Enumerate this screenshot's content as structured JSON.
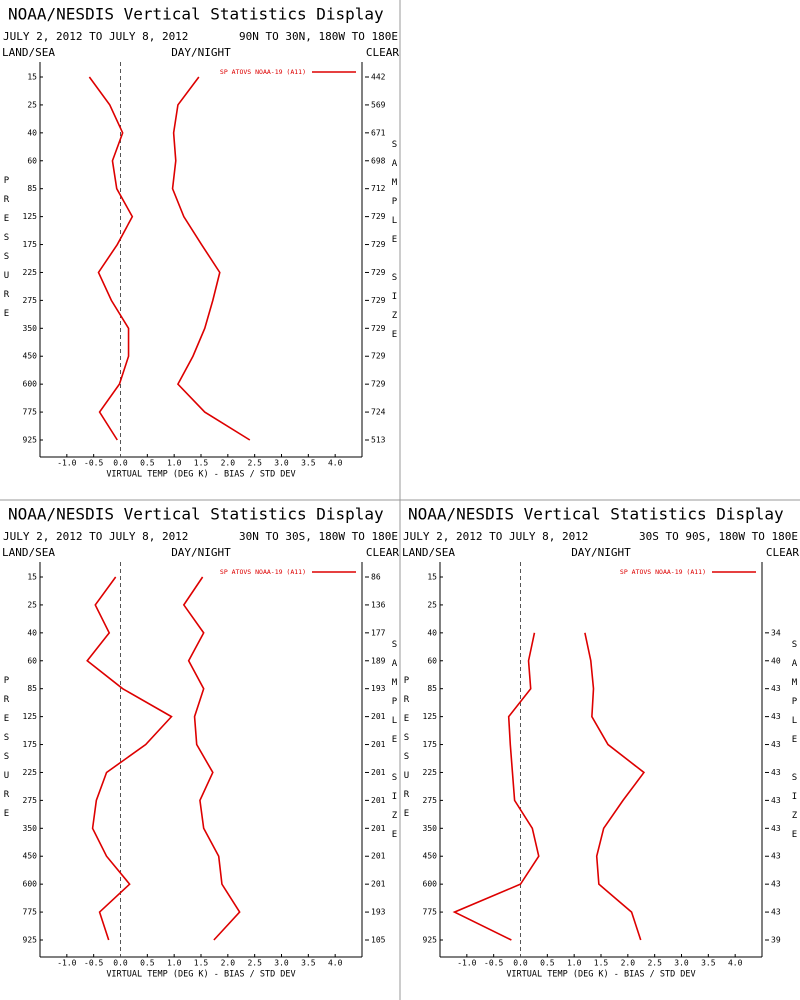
{
  "chart_data": [
    {
      "type": "line",
      "orientation": "horizontal",
      "title": "NOAA/NESDIS Vertical Statistics Display",
      "subtitle": "JULY 2, 2012 TO JULY 8, 2012",
      "region": "90N TO 30N, 180W TO 180E",
      "land_sea": "LAND/SEA",
      "day_night": "DAY/NIGHT",
      "clear": "CLEAR",
      "ylabel": "PRESSURE",
      "y2label": "SAMPLE SIZE",
      "xlabel": "VIRTUAL TEMP (DEG K) - BIAS / STD DEV",
      "categories": [
        15,
        25,
        40,
        60,
        85,
        125,
        175,
        225,
        275,
        350,
        450,
        600,
        775,
        925
      ],
      "sample_sizes": [
        442,
        569,
        671,
        698,
        712,
        729,
        729,
        729,
        729,
        729,
        729,
        729,
        724,
        513
      ],
      "series": [
        {
          "name": "SP ATOVS NOAA-19 (A11)",
          "color": "#dd0000",
          "values": [
            -0.58,
            -0.2,
            0.04,
            -0.15,
            -0.07,
            0.22,
            -0.06,
            -0.41,
            -0.17,
            0.15,
            0.15,
            -0.02,
            -0.39,
            -0.06
          ]
        },
        {
          "color": "#dd0000",
          "values": [
            1.46,
            1.07,
            0.99,
            1.03,
            0.97,
            1.18,
            1.51,
            1.85,
            1.72,
            1.57,
            1.35,
            1.07,
            1.57,
            2.41
          ]
        }
      ],
      "xlim": [
        -1.5,
        4.5
      ],
      "xticks": [
        {
          "value": -1,
          "label": "-1.0"
        },
        -0.5,
        {
          "value": 0,
          "label": "0.0"
        },
        0.5,
        {
          "value": 1,
          "label": "1.0"
        },
        1.5,
        {
          "value": 2,
          "label": "2.0"
        },
        2.5,
        {
          "value": 3,
          "label": "3.0"
        },
        3.5,
        {
          "value": 4,
          "label": "4.0"
        }
      ],
      "zero_line": true,
      "legend": "upper right"
    },
    {
      "type": "line",
      "orientation": "horizontal",
      "title": "NOAA/NESDIS Vertical Statistics Display",
      "subtitle": "JULY 2, 2012 TO JULY 8, 2012",
      "region": "30N TO 30S, 180W TO 180E",
      "land_sea": "LAND/SEA",
      "day_night": "DAY/NIGHT",
      "clear": "CLEAR",
      "ylabel": "PRESSURE",
      "y2label": "SAMPLE SIZE",
      "xlabel": "VIRTUAL TEMP (DEG K) - BIAS / STD DEV",
      "categories": [
        15,
        25,
        40,
        60,
        85,
        125,
        175,
        225,
        275,
        350,
        450,
        600,
        775,
        925
      ],
      "sample_sizes": [
        86,
        136,
        177,
        189,
        193,
        201,
        201,
        201,
        201,
        201,
        201,
        201,
        193,
        105
      ],
      "series": [
        {
          "name": "SP ATOVS NOAA-19 (A11)",
          "color": "#dd0000",
          "values": [
            -0.09,
            -0.47,
            -0.21,
            -0.62,
            0.04,
            0.95,
            0.47,
            -0.26,
            -0.45,
            -0.52,
            -0.26,
            0.17,
            -0.39,
            -0.22
          ]
        },
        {
          "color": "#dd0000",
          "values": [
            1.53,
            1.18,
            1.55,
            1.27,
            1.55,
            1.38,
            1.42,
            1.72,
            1.48,
            1.55,
            1.83,
            1.89,
            2.22,
            1.74
          ]
        }
      ],
      "xlim": [
        -1.5,
        4.5
      ],
      "xticks": [
        {
          "value": -1,
          "label": "-1.0"
        },
        -0.5,
        {
          "value": 0,
          "label": "0.0"
        },
        0.5,
        {
          "value": 1,
          "label": "1.0"
        },
        1.5,
        {
          "value": 2,
          "label": "2.0"
        },
        2.5,
        {
          "value": 3,
          "label": "3.0"
        },
        3.5,
        {
          "value": 4,
          "label": "4.0"
        }
      ],
      "zero_line": true,
      "legend": "upper right"
    },
    {
      "type": "line",
      "orientation": "horizontal",
      "title": "NOAA/NESDIS Vertical Statistics Display",
      "subtitle": "JULY 2, 2012 TO JULY 8, 2012",
      "region": "30S TO 90S, 180W TO 180E",
      "land_sea": "LAND/SEA",
      "day_night": "DAY/NIGHT",
      "clear": "CLEAR",
      "ylabel": "PRESSURE",
      "y2label": "SAMPLE SIZE",
      "xlabel": "VIRTUAL TEMP (DEG K) - BIAS / STD DEV",
      "categories": [
        15,
        25,
        40,
        60,
        85,
        125,
        175,
        225,
        275,
        350,
        450,
        600,
        775,
        925
      ],
      "sample_sizes": [
        null,
        null,
        34,
        40,
        43,
        43,
        43,
        43,
        43,
        43,
        43,
        43,
        43,
        39
      ],
      "series": [
        {
          "name": "SP ATOVS NOAA-19 (A11)",
          "color": "#dd0000",
          "values": [
            null,
            null,
            0.26,
            0.15,
            0.19,
            -0.22,
            -0.19,
            -0.15,
            -0.11,
            0.22,
            0.34,
            0.0,
            -1.23,
            -0.17
          ]
        },
        {
          "color": "#dd0000",
          "values": [
            null,
            null,
            1.2,
            1.31,
            1.36,
            1.33,
            1.63,
            2.3,
            1.91,
            1.55,
            1.42,
            1.46,
            2.07,
            2.24
          ]
        }
      ],
      "xlim": [
        -1.5,
        4.5
      ],
      "xticks": [
        {
          "value": -1,
          "label": "-1.0"
        },
        -0.5,
        {
          "value": 0,
          "label": "0.0"
        },
        0.5,
        {
          "value": 1,
          "label": "1.0"
        },
        1.5,
        {
          "value": 2,
          "label": "2.0"
        },
        2.5,
        {
          "value": 3,
          "label": "3.0"
        },
        3.5,
        {
          "value": 4,
          "label": "4.0"
        }
      ],
      "zero_line": true,
      "legend": "upper right"
    }
  ]
}
